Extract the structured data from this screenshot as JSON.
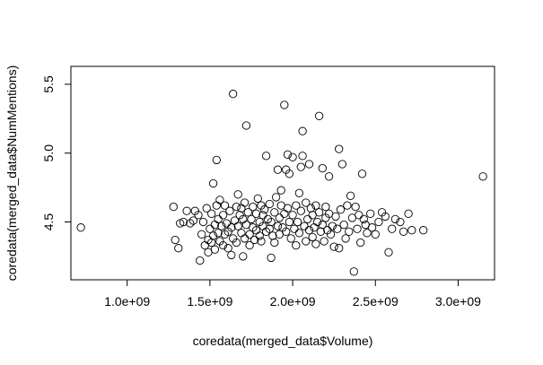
{
  "chart_data": {
    "type": "scatter",
    "title": "",
    "xlabel": "coredata(merged_data$Volume)",
    "ylabel": "coredata(merged_data$NumMentions)",
    "x_ticks": [
      "1.0e+09",
      "1.5e+09",
      "2.0e+09",
      "2.5e+09",
      "3.0e+09"
    ],
    "x_tick_values": [
      1000000000.0,
      1500000000.0,
      2000000000.0,
      2500000000.0,
      3000000000.0
    ],
    "y_ticks": [
      "4.5",
      "5.0",
      "5.5"
    ],
    "y_tick_values": [
      4.5,
      5.0,
      5.5
    ],
    "xlim": [
      660000000.0,
      3220000000.0
    ],
    "ylim": [
      4.08,
      5.63
    ],
    "grid": false,
    "legend": "none",
    "points": [
      [
        720000000.0,
        4.46
      ],
      [
        1280000000.0,
        4.61
      ],
      [
        1290000000.0,
        4.37
      ],
      [
        1310000000.0,
        4.31
      ],
      [
        1320000000.0,
        4.49
      ],
      [
        1340000000.0,
        4.5
      ],
      [
        1360000000.0,
        4.58
      ],
      [
        1380000000.0,
        4.49
      ],
      [
        1400000000.0,
        4.51
      ],
      [
        1410000000.0,
        4.58
      ],
      [
        1430000000.0,
        4.55
      ],
      [
        1440000000.0,
        4.22
      ],
      [
        1450000000.0,
        4.41
      ],
      [
        1460000000.0,
        4.5
      ],
      [
        1470000000.0,
        4.33
      ],
      [
        1480000000.0,
        4.6
      ],
      [
        1490000000.0,
        4.37
      ],
      [
        1490000000.0,
        4.28
      ],
      [
        1500000000.0,
        4.45
      ],
      [
        1510000000.0,
        4.35
      ],
      [
        1510000000.0,
        4.56
      ],
      [
        1520000000.0,
        4.4
      ],
      [
        1520000000.0,
        4.78
      ],
      [
        1530000000.0,
        4.48
      ],
      [
        1530000000.0,
        4.3
      ],
      [
        1540000000.0,
        4.95
      ],
      [
        1540000000.0,
        4.62
      ],
      [
        1550000000.0,
        4.42
      ],
      [
        1550000000.0,
        4.52
      ],
      [
        1560000000.0,
        4.36
      ],
      [
        1560000000.0,
        4.66
      ],
      [
        1570000000.0,
        4.47
      ],
      [
        1580000000.0,
        4.33
      ],
      [
        1580000000.0,
        4.55
      ],
      [
        1590000000.0,
        4.62
      ],
      [
        1590000000.0,
        4.41
      ],
      [
        1600000000.0,
        4.49
      ],
      [
        1610000000.0,
        4.31
      ],
      [
        1610000000.0,
        4.43
      ],
      [
        1620000000.0,
        4.58
      ],
      [
        1630000000.0,
        4.26
      ],
      [
        1630000000.0,
        4.46
      ],
      [
        1640000000.0,
        5.43
      ],
      [
        1640000000.0,
        4.38
      ],
      [
        1650000000.0,
        4.51
      ],
      [
        1660000000.0,
        4.61
      ],
      [
        1660000000.0,
        4.35
      ],
      [
        1670000000.0,
        4.7
      ],
      [
        1670000000.0,
        4.47
      ],
      [
        1680000000.0,
        4.55
      ],
      [
        1690000000.0,
        4.42
      ],
      [
        1690000000.0,
        4.6
      ],
      [
        1700000000.0,
        4.25
      ],
      [
        1700000000.0,
        4.52
      ],
      [
        1710000000.0,
        4.38
      ],
      [
        1710000000.0,
        4.64
      ],
      [
        1720000000.0,
        5.2
      ],
      [
        1720000000.0,
        4.48
      ],
      [
        1730000000.0,
        4.57
      ],
      [
        1740000000.0,
        4.41
      ],
      [
        1740000000.0,
        4.33
      ],
      [
        1750000000.0,
        4.52
      ],
      [
        1760000000.0,
        4.46
      ],
      [
        1760000000.0,
        4.61
      ],
      [
        1770000000.0,
        4.37
      ],
      [
        1780000000.0,
        4.56
      ],
      [
        1780000000.0,
        4.44
      ],
      [
        1790000000.0,
        4.67
      ],
      [
        1800000000.0,
        4.5
      ],
      [
        1800000000.0,
        4.4
      ],
      [
        1810000000.0,
        4.62
      ],
      [
        1810000000.0,
        4.36
      ],
      [
        1820000000.0,
        4.55
      ],
      [
        1820000000.0,
        4.47
      ],
      [
        1830000000.0,
        4.59
      ],
      [
        1840000000.0,
        4.43
      ],
      [
        1840000000.0,
        4.98
      ],
      [
        1850000000.0,
        4.52
      ],
      [
        1860000000.0,
        4.45
      ],
      [
        1860000000.0,
        4.63
      ],
      [
        1870000000.0,
        4.24
      ],
      [
        1870000000.0,
        4.5
      ],
      [
        1880000000.0,
        4.4
      ],
      [
        1890000000.0,
        4.57
      ],
      [
        1890000000.0,
        4.35
      ],
      [
        1900000000.0,
        4.68
      ],
      [
        1910000000.0,
        4.47
      ],
      [
        1910000000.0,
        4.88
      ],
      [
        1920000000.0,
        4.53
      ],
      [
        1920000000.0,
        4.41
      ],
      [
        1930000000.0,
        4.73
      ],
      [
        1930000000.0,
        4.62
      ],
      [
        1940000000.0,
        4.46
      ],
      [
        1950000000.0,
        5.35
      ],
      [
        1950000000.0,
        4.56
      ],
      [
        1960000000.0,
        4.88
      ],
      [
        1960000000.0,
        4.43
      ],
      [
        1970000000.0,
        4.99
      ],
      [
        1970000000.0,
        4.6
      ],
      [
        1980000000.0,
        4.85
      ],
      [
        1980000000.0,
        4.5
      ],
      [
        1990000000.0,
        4.38
      ],
      [
        2000000000.0,
        4.97
      ],
      [
        2000000000.0,
        4.55
      ],
      [
        2010000000.0,
        4.45
      ],
      [
        2020000000.0,
        4.62
      ],
      [
        2020000000.0,
        4.33
      ],
      [
        2030000000.0,
        4.5
      ],
      [
        2040000000.0,
        4.71
      ],
      [
        2040000000.0,
        4.42
      ],
      [
        2050000000.0,
        4.9
      ],
      [
        2050000000.0,
        4.58
      ],
      [
        2060000000.0,
        5.16
      ],
      [
        2060000000.0,
        4.98
      ],
      [
        2070000000.0,
        4.47
      ],
      [
        2080000000.0,
        4.36
      ],
      [
        2080000000.0,
        4.64
      ],
      [
        2090000000.0,
        4.52
      ],
      [
        2100000000.0,
        4.92
      ],
      [
        2100000000.0,
        4.44
      ],
      [
        2110000000.0,
        4.6
      ],
      [
        2120000000.0,
        4.39
      ],
      [
        2120000000.0,
        4.55
      ],
      [
        2130000000.0,
        4.46
      ],
      [
        2140000000.0,
        4.62
      ],
      [
        2140000000.0,
        4.34
      ],
      [
        2150000000.0,
        4.5
      ],
      [
        2160000000.0,
        5.27
      ],
      [
        2160000000.0,
        4.57
      ],
      [
        2170000000.0,
        4.43
      ],
      [
        2180000000.0,
        4.89
      ],
      [
        2180000000.0,
        4.48
      ],
      [
        2190000000.0,
        4.36
      ],
      [
        2200000000.0,
        4.61
      ],
      [
        2200000000.0,
        4.53
      ],
      [
        2210000000.0,
        4.44
      ],
      [
        2220000000.0,
        4.83
      ],
      [
        2220000000.0,
        4.56
      ],
      [
        2230000000.0,
        4.41
      ],
      [
        2240000000.0,
        4.47
      ],
      [
        2250000000.0,
        4.32
      ],
      [
        2260000000.0,
        4.54
      ],
      [
        2270000000.0,
        4.45
      ],
      [
        2280000000.0,
        5.03
      ],
      [
        2280000000.0,
        4.31
      ],
      [
        2290000000.0,
        4.59
      ],
      [
        2300000000.0,
        4.92
      ],
      [
        2310000000.0,
        4.48
      ],
      [
        2320000000.0,
        4.38
      ],
      [
        2330000000.0,
        4.62
      ],
      [
        2340000000.0,
        4.43
      ],
      [
        2350000000.0,
        4.69
      ],
      [
        2360000000.0,
        4.53
      ],
      [
        2370000000.0,
        4.14
      ],
      [
        2380000000.0,
        4.61
      ],
      [
        2390000000.0,
        4.45
      ],
      [
        2400000000.0,
        4.55
      ],
      [
        2410000000.0,
        4.35
      ],
      [
        2420000000.0,
        4.85
      ],
      [
        2430000000.0,
        4.52
      ],
      [
        2440000000.0,
        4.48
      ],
      [
        2450000000.0,
        4.42
      ],
      [
        2470000000.0,
        4.56
      ],
      [
        2480000000.0,
        4.46
      ],
      [
        2500000000.0,
        4.41
      ],
      [
        2520000000.0,
        4.5
      ],
      [
        2540000000.0,
        4.57
      ],
      [
        2560000000.0,
        4.54
      ],
      [
        2580000000.0,
        4.28
      ],
      [
        2600000000.0,
        4.45
      ],
      [
        2620000000.0,
        4.52
      ],
      [
        2650000000.0,
        4.5
      ],
      [
        2670000000.0,
        4.43
      ],
      [
        2700000000.0,
        4.56
      ],
      [
        2720000000.0,
        4.44
      ],
      [
        2790000000.0,
        4.44
      ],
      [
        3150000000.0,
        4.83
      ]
    ]
  }
}
